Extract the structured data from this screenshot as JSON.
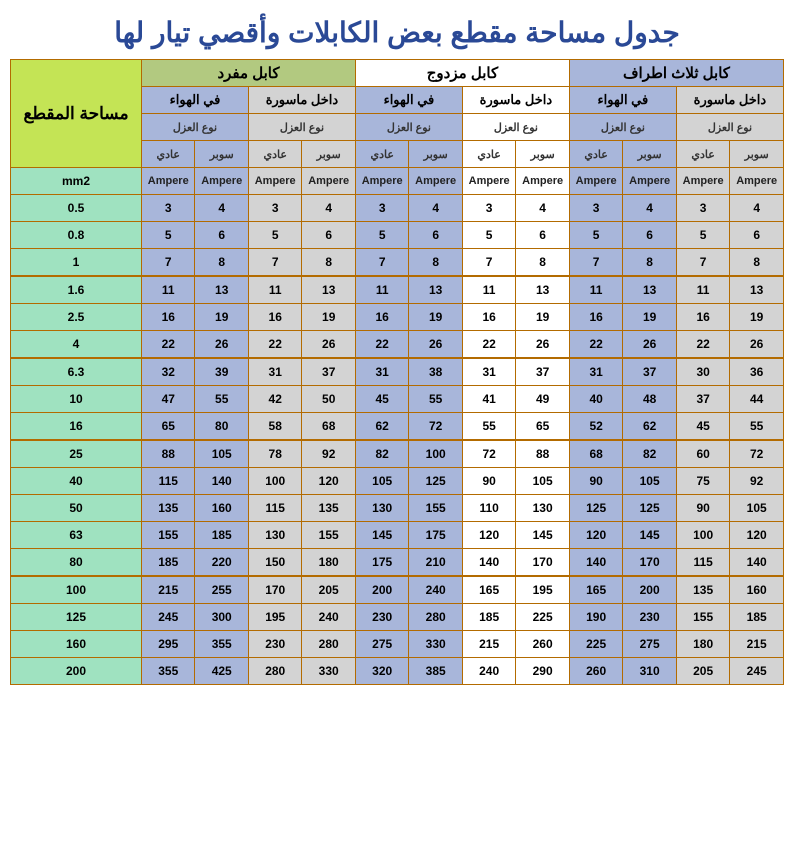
{
  "title": "جدول مساحة مقطع بعض الكابلات وأقصي تيار لها",
  "headers": {
    "area": "مساحة المقطع",
    "cable_single": "كابل مفرد",
    "cable_double": "كابل مزدوج",
    "cable_triple": "كابل ثلاث اطراف",
    "in_air": "في الهواء",
    "in_pipe": "داخل ماسورة",
    "iso_type": "نوع العزل",
    "normal": "عادي",
    "super": "سوبر",
    "unit": "mm2",
    "ampere": "Ampere"
  },
  "colors": {
    "title_color": "#2a4996",
    "border": "#b36b00",
    "area_bg": "#c4e455",
    "green_bg": "#9fe2c0",
    "lav_bg": "#a8b6da",
    "gray_bg": "#d3d3d3",
    "white_bg": "#ffffff",
    "cable_green": "#b2c980"
  },
  "sizes": [
    "0.5",
    "0.8",
    "1",
    "1.6",
    "2.5",
    "4",
    "6.3",
    "10",
    "16",
    "25",
    "40",
    "50",
    "63",
    "80",
    "100",
    "125",
    "160",
    "200"
  ],
  "group_breaks": [
    3,
    6,
    9,
    14
  ],
  "data": [
    [
      3,
      4,
      3,
      4,
      3,
      4,
      3,
      4,
      3,
      4,
      3,
      4
    ],
    [
      5,
      6,
      5,
      6,
      5,
      6,
      5,
      6,
      5,
      6,
      5,
      6
    ],
    [
      7,
      8,
      7,
      8,
      7,
      8,
      7,
      8,
      7,
      8,
      7,
      8
    ],
    [
      11,
      13,
      11,
      13,
      11,
      13,
      11,
      13,
      11,
      13,
      11,
      13
    ],
    [
      16,
      19,
      16,
      19,
      16,
      19,
      16,
      19,
      16,
      19,
      16,
      19
    ],
    [
      22,
      26,
      22,
      26,
      22,
      26,
      22,
      26,
      22,
      26,
      22,
      26
    ],
    [
      32,
      39,
      31,
      37,
      31,
      38,
      31,
      37,
      31,
      37,
      30,
      36
    ],
    [
      47,
      55,
      42,
      50,
      45,
      55,
      41,
      49,
      40,
      48,
      37,
      44
    ],
    [
      65,
      80,
      58,
      68,
      62,
      72,
      55,
      65,
      52,
      62,
      45,
      55
    ],
    [
      88,
      105,
      78,
      92,
      82,
      100,
      72,
      88,
      68,
      82,
      60,
      72
    ],
    [
      115,
      140,
      100,
      120,
      105,
      125,
      90,
      105,
      90,
      105,
      75,
      92
    ],
    [
      135,
      160,
      115,
      135,
      130,
      155,
      110,
      130,
      125,
      125,
      90,
      105
    ],
    [
      155,
      185,
      130,
      155,
      145,
      175,
      120,
      145,
      120,
      145,
      100,
      120
    ],
    [
      185,
      220,
      150,
      180,
      175,
      210,
      140,
      170,
      140,
      170,
      115,
      140
    ],
    [
      215,
      255,
      170,
      205,
      200,
      240,
      165,
      195,
      165,
      200,
      135,
      160
    ],
    [
      245,
      300,
      195,
      240,
      230,
      280,
      185,
      225,
      190,
      230,
      155,
      185
    ],
    [
      295,
      355,
      230,
      280,
      275,
      330,
      215,
      260,
      225,
      275,
      180,
      215
    ],
    [
      355,
      425,
      280,
      330,
      320,
      385,
      240,
      290,
      260,
      310,
      205,
      245
    ]
  ],
  "column_bg_pattern": [
    "lav",
    "lav",
    "gray",
    "gray",
    "lav",
    "lav",
    "white",
    "white",
    "lav",
    "lav",
    "gray",
    "gray"
  ]
}
